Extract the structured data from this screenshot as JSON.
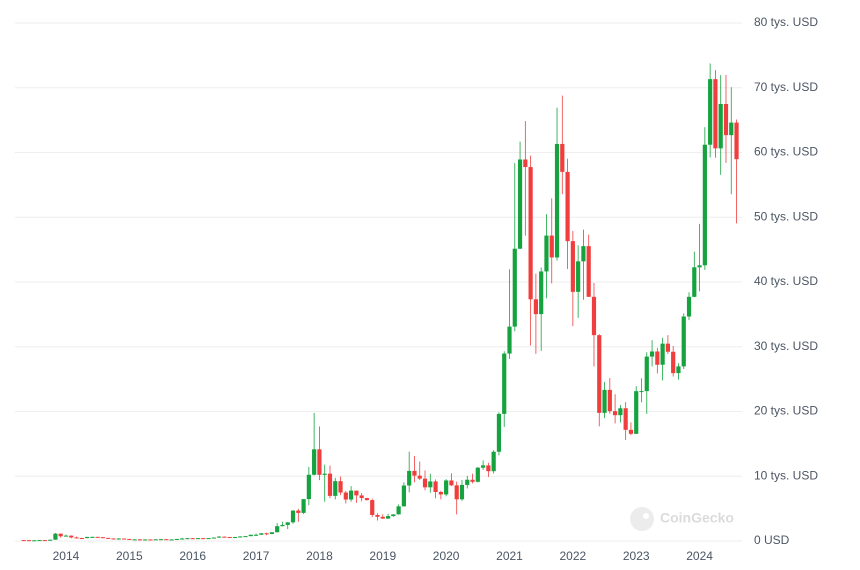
{
  "chart_data": {
    "type": "candlestick",
    "watermark": "CoinGecko",
    "up_color": "#16a33f",
    "down_color": "#f03e3e",
    "grid": true,
    "ylim": [
      0,
      80
    ],
    "yticks": [
      {
        "value": 0,
        "label": "0 USD"
      },
      {
        "value": 10,
        "label": "10 tys. USD"
      },
      {
        "value": 20,
        "label": "20 tys. USD"
      },
      {
        "value": 30,
        "label": "30 tys. USD"
      },
      {
        "value": 40,
        "label": "40 tys. USD"
      },
      {
        "value": 50,
        "label": "50 tys. USD"
      },
      {
        "value": 60,
        "label": "60 tys. USD"
      },
      {
        "value": 70,
        "label": "70 tys. USD"
      },
      {
        "value": 80,
        "label": "80 tys. USD"
      }
    ],
    "categories": [
      null,
      null,
      null,
      null,
      null,
      null,
      null,
      null,
      "2014",
      null,
      null,
      null,
      null,
      null,
      null,
      null,
      null,
      null,
      null,
      null,
      "2015",
      null,
      null,
      null,
      null,
      null,
      null,
      null,
      null,
      null,
      null,
      null,
      "2016",
      null,
      null,
      null,
      null,
      null,
      null,
      null,
      null,
      null,
      null,
      null,
      "2017",
      null,
      null,
      null,
      null,
      null,
      null,
      null,
      null,
      null,
      null,
      null,
      "2018",
      null,
      null,
      null,
      null,
      null,
      null,
      null,
      null,
      null,
      null,
      null,
      "2019",
      null,
      null,
      null,
      null,
      null,
      null,
      null,
      null,
      null,
      null,
      null,
      "2020",
      null,
      null,
      null,
      null,
      null,
      null,
      null,
      null,
      null,
      null,
      null,
      "2021",
      null,
      null,
      null,
      null,
      null,
      null,
      null,
      null,
      null,
      null,
      null,
      "2022",
      null,
      null,
      null,
      null,
      null,
      null,
      null,
      null,
      null,
      null,
      null,
      "2023",
      null,
      null,
      null,
      null,
      null,
      null,
      null,
      null,
      null,
      null,
      null,
      "2024",
      null,
      null,
      null,
      null,
      null,
      null,
      null
    ],
    "open": [
      0.14,
      0.13,
      0.1,
      0.11,
      0.14,
      0.13,
      0.2,
      1.13,
      0.73,
      0.83,
      0.55,
      0.46,
      0.45,
      0.63,
      0.64,
      0.59,
      0.48,
      0.39,
      0.34,
      0.38,
      0.32,
      0.22,
      0.25,
      0.24,
      0.24,
      0.23,
      0.26,
      0.28,
      0.23,
      0.24,
      0.31,
      0.38,
      0.43,
      0.37,
      0.44,
      0.42,
      0.45,
      0.53,
      0.67,
      0.62,
      0.57,
      0.61,
      0.7,
      0.75,
      0.96,
      0.97,
      1.19,
      1.08,
      1.35,
      2.29,
      2.48,
      2.88,
      4.7,
      4.34,
      6.47,
      10.23,
      14.16,
      10.22,
      10.4,
      6.97,
      9.24,
      7.49,
      6.4,
      7.78,
      7.04,
      6.63,
      6.32,
      4.02,
      3.74,
      3.46,
      3.85,
      4.11,
      5.35,
      8.57,
      10.82,
      10.09,
      9.63,
      8.29,
      9.2,
      7.57,
      7.19,
      9.35,
      8.6,
      6.44,
      8.66,
      9.46,
      9.14,
      11.32,
      11.68,
      10.78,
      13.78,
      19.63,
      28.95,
      33.11,
      45.14,
      58.92,
      57.75,
      37.33,
      35.04,
      41.63,
      47.17,
      43.79,
      61.32,
      57.01,
      46.31,
      38.48,
      43.19,
      45.54,
      37.71,
      31.79,
      19.79,
      23.34,
      20.05,
      19.43,
      20.5,
      17.17,
      16.55,
      23.14,
      23.15,
      28.48,
      29.27,
      27.22,
      30.48,
      29.23,
      25.93,
      26.97,
      34.67,
      37.71,
      42.27,
      42.58,
      61.2,
      71.33,
      60.64,
      67.49,
      62.68,
      64.62
    ],
    "high": [
      0.14,
      0.13,
      0.11,
      0.14,
      0.14,
      0.21,
      1.24,
      1.15,
      1.0,
      0.87,
      0.69,
      0.51,
      0.63,
      0.68,
      0.65,
      0.6,
      0.49,
      0.41,
      0.46,
      0.39,
      0.32,
      0.26,
      0.3,
      0.26,
      0.25,
      0.27,
      0.32,
      0.29,
      0.25,
      0.33,
      0.5,
      0.47,
      0.46,
      0.44,
      0.44,
      0.47,
      0.55,
      0.78,
      0.7,
      0.63,
      0.63,
      0.74,
      0.75,
      0.97,
      1.14,
      1.21,
      1.29,
      1.35,
      2.76,
      2.98,
      2.91,
      4.74,
      4.98,
      6.47,
      11.43,
      19.78,
      17.71,
      11.79,
      11.65,
      9.75,
      9.96,
      7.75,
      8.47,
      7.76,
      7.4,
      6.67,
      6.55,
      4.31,
      4.11,
      4.21,
      4.13,
      5.64,
      9.07,
      13.8,
      13.13,
      12.27,
      10.9,
      10.37,
      9.5,
      7.75,
      9.55,
      10.46,
      9.17,
      9.44,
      10.07,
      10.38,
      11.43,
      12.46,
      12.07,
      14.03,
      19.86,
      29.3,
      41.95,
      58.35,
      61.68,
      64.86,
      59.52,
      41.3,
      42.24,
      50.48,
      52.92,
      66.93,
      68.79,
      59.04,
      47.88,
      45.66,
      48.09,
      47.31,
      39.84,
      31.95,
      24.57,
      25.17,
      22.67,
      21.01,
      21.45,
      18.32,
      23.92,
      25.13,
      29.16,
      31.0,
      29.82,
      31.39,
      31.8,
      30.12,
      27.46,
      35.15,
      38.41,
      44.7,
      48.97,
      63.91,
      73.75,
      72.72,
      71.95,
      71.96,
      70.08,
      65.09
    ],
    "low": [
      0.1,
      0.09,
      0.07,
      0.1,
      0.11,
      0.11,
      0.2,
      0.52,
      0.73,
      0.42,
      0.44,
      0.34,
      0.43,
      0.55,
      0.57,
      0.45,
      0.36,
      0.29,
      0.32,
      0.31,
      0.17,
      0.21,
      0.24,
      0.21,
      0.23,
      0.22,
      0.26,
      0.2,
      0.22,
      0.24,
      0.31,
      0.35,
      0.36,
      0.37,
      0.4,
      0.41,
      0.44,
      0.53,
      0.61,
      0.54,
      0.57,
      0.6,
      0.69,
      0.74,
      0.75,
      0.92,
      0.89,
      1.06,
      1.35,
      2.26,
      1.84,
      2.67,
      2.95,
      4.17,
      5.52,
      10.13,
      9.4,
      6.05,
      6.63,
      6.43,
      7.08,
      5.79,
      6.07,
      5.88,
      6.12,
      6.23,
      3.71,
      3.16,
      3.4,
      3.4,
      3.73,
      4.1,
      5.33,
      7.51,
      9.07,
      9.4,
      7.83,
      7.45,
      6.61,
      6.44,
      6.91,
      8.47,
      4.11,
      6.2,
      8.12,
      8.9,
      9.04,
      10.99,
      9.88,
      10.42,
      13.22,
      17.62,
      28.13,
      32.38,
      45.12,
      47.16,
      30.2,
      28.89,
      29.36,
      37.5,
      39.79,
      43.32,
      53.57,
      42.0,
      33.18,
      34.46,
      37.26,
      37.7,
      26.97,
      17.71,
      18.97,
      19.66,
      18.16,
      18.31,
      15.6,
      16.33,
      16.52,
      21.43,
      19.63,
      26.97,
      25.88,
      24.8,
      28.88,
      25.4,
      24.93,
      26.56,
      34.12,
      37.66,
      38.56,
      41.88,
      59.22,
      59.19,
      56.55,
      58.4,
      53.55,
      49.05
    ],
    "close": [
      0.13,
      0.1,
      0.11,
      0.14,
      0.13,
      0.2,
      1.13,
      0.73,
      0.83,
      0.55,
      0.46,
      0.45,
      0.63,
      0.64,
      0.59,
      0.48,
      0.39,
      0.34,
      0.38,
      0.32,
      0.22,
      0.25,
      0.24,
      0.24,
      0.23,
      0.26,
      0.28,
      0.23,
      0.24,
      0.31,
      0.38,
      0.43,
      0.37,
      0.44,
      0.42,
      0.45,
      0.53,
      0.67,
      0.62,
      0.57,
      0.61,
      0.7,
      0.75,
      0.96,
      0.97,
      1.19,
      1.08,
      1.35,
      2.29,
      2.48,
      2.88,
      4.7,
      4.34,
      6.47,
      10.23,
      14.16,
      10.22,
      10.4,
      6.97,
      9.24,
      7.49,
      6.4,
      7.78,
      7.04,
      6.63,
      6.32,
      4.02,
      3.74,
      3.46,
      3.85,
      4.11,
      5.35,
      8.57,
      10.82,
      10.09,
      9.63,
      8.29,
      9.2,
      7.57,
      7.19,
      9.35,
      8.6,
      6.44,
      8.66,
      9.46,
      9.14,
      11.32,
      11.68,
      10.78,
      13.78,
      19.63,
      28.95,
      33.11,
      45.14,
      58.92,
      57.75,
      37.33,
      35.04,
      41.63,
      47.17,
      43.79,
      61.32,
      57.01,
      46.31,
      38.48,
      43.19,
      45.54,
      37.71,
      31.79,
      19.79,
      23.34,
      20.05,
      19.43,
      20.5,
      17.17,
      16.55,
      23.14,
      23.15,
      28.48,
      29.27,
      27.22,
      30.48,
      29.23,
      25.93,
      26.97,
      34.67,
      37.71,
      42.27,
      42.58,
      61.2,
      71.33,
      60.64,
      67.49,
      62.68,
      64.62,
      58.97
    ]
  }
}
